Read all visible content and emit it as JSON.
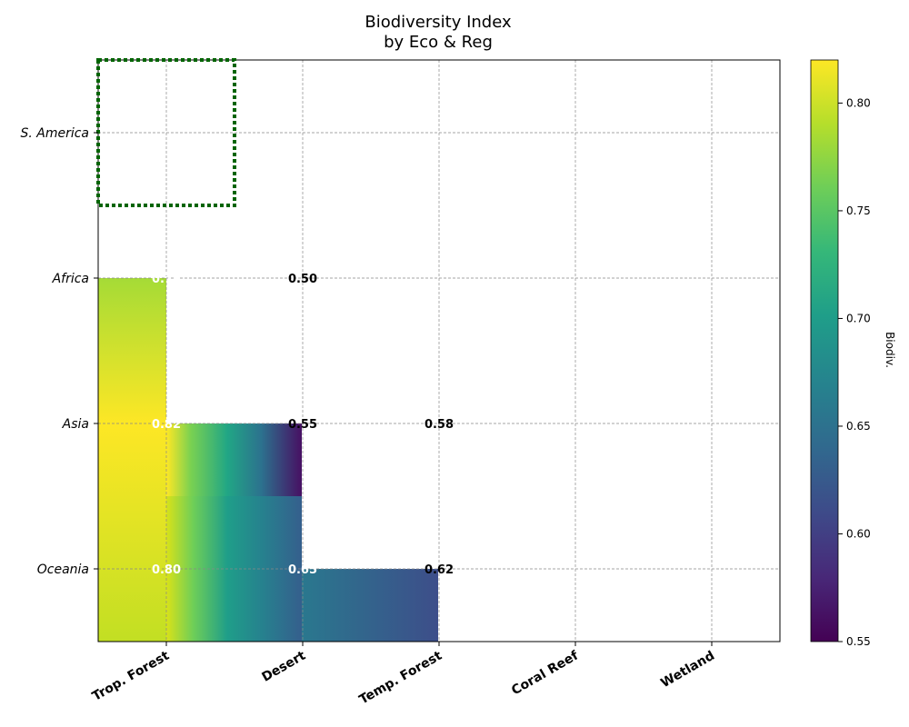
{
  "chart_data": {
    "type": "heatmap",
    "title_lines": [
      "Biodiversity Index",
      "by Eco & Reg"
    ],
    "colorbar_label": "Biodiv.",
    "colormap": "viridis",
    "vmin": 0.55,
    "vmax": 0.82,
    "colorbar_ticks": [
      "0.55",
      "0.60",
      "0.65",
      "0.70",
      "0.75",
      "0.80"
    ],
    "x_categories": [
      "Trop. Forest",
      "Desert",
      "Temp. Forest",
      "Coral Reef",
      "Wetland"
    ],
    "y_categories": [
      "S. America",
      "Africa",
      "Asia",
      "Oceania"
    ],
    "grid": true,
    "cells": [
      {
        "x": "Trop. Forest",
        "y": "Africa",
        "value": 0.78,
        "label": "0.78"
      },
      {
        "x": "Trop. Forest",
        "y": "Asia",
        "value": 0.82,
        "label": "0.82"
      },
      {
        "x": "Trop. Forest",
        "y": "Oceania",
        "value": 0.8,
        "label": "0.80"
      },
      {
        "x": "Desert",
        "y": "Africa",
        "value": 0.5,
        "label": "0.50"
      },
      {
        "x": "Desert",
        "y": "Asia",
        "value": 0.55,
        "label": "0.55"
      },
      {
        "x": "Desert",
        "y": "Oceania",
        "value": 0.65,
        "label": "0.65"
      },
      {
        "x": "Temp. Forest",
        "y": "Asia",
        "value": 0.58,
        "label": "0.58"
      },
      {
        "x": "Temp. Forest",
        "y": "Oceania",
        "value": 0.62,
        "label": "0.62"
      }
    ],
    "highlight": {
      "x": "Trop. Forest",
      "y": "S. America",
      "style": "dotted",
      "color": "#006400"
    }
  }
}
